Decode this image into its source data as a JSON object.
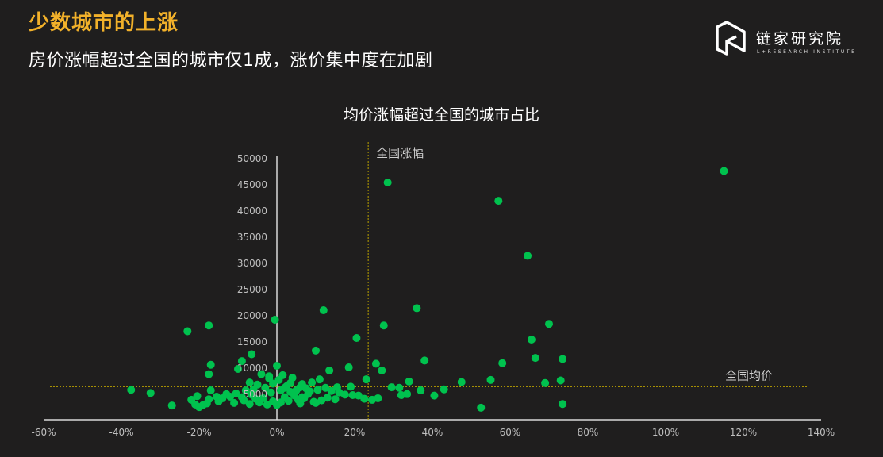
{
  "headline": "少数城市的上涨",
  "subheadline": "房价涨幅超过全国的城市仅1成，涨价集中度在加剧",
  "brand": {
    "name": "链家研究院",
    "tagline": "L+RESEARCH INSTITUTE"
  },
  "colors": {
    "accent": "#f2b12a",
    "points": "#00c24e",
    "reference_line": "#b9a000",
    "axis": "#d9d9d9"
  },
  "chart_data": {
    "type": "scatter",
    "title": "均价涨幅超过全国的城市占比",
    "xlabel": "",
    "ylabel": "",
    "xlim": [
      -60,
      140
    ],
    "ylim": [
      0,
      50000
    ],
    "x_ticks": [
      -60,
      -40,
      -20,
      0,
      20,
      40,
      60,
      80,
      100,
      120,
      140
    ],
    "x_tick_labels": [
      "-60%",
      "-40%",
      "-20%",
      "0%",
      "20%",
      "40%",
      "60%",
      "80%",
      "100%",
      "120%",
      "140%"
    ],
    "y_ticks": [
      5000,
      10000,
      15000,
      20000,
      25000,
      30000,
      35000,
      40000,
      45000,
      50000
    ],
    "y_tick_labels": [
      "5000",
      "10000",
      "15000",
      "20000",
      "25000",
      "30000",
      "35000",
      "40000",
      "45000",
      "50000"
    ],
    "reference_lines": [
      {
        "axis": "x",
        "value": 23.5,
        "label": "全国涨幅"
      },
      {
        "axis": "y",
        "value": 6300,
        "label": "全国均价"
      }
    ],
    "series": [
      {
        "points": [
          [
            115,
            47500
          ],
          [
            57,
            41800
          ],
          [
            28.5,
            45300
          ],
          [
            64.5,
            31300
          ],
          [
            36,
            21300
          ],
          [
            12,
            20900
          ],
          [
            70,
            18300
          ],
          [
            27.5,
            18000
          ],
          [
            -0.5,
            19100
          ],
          [
            -17.5,
            18000
          ],
          [
            -23,
            16900
          ],
          [
            20.5,
            15600
          ],
          [
            65.5,
            15300
          ],
          [
            10,
            13200
          ],
          [
            -6.5,
            12500
          ],
          [
            66.5,
            11800
          ],
          [
            73.5,
            11600
          ],
          [
            38,
            11300
          ],
          [
            58,
            10800
          ],
          [
            -9,
            11200
          ],
          [
            25.5,
            10700
          ],
          [
            18.5,
            10000
          ],
          [
            -17,
            10500
          ],
          [
            27,
            9400
          ],
          [
            -17.5,
            8700
          ],
          [
            13.5,
            9400
          ],
          [
            0,
            10300
          ],
          [
            -10,
            9700
          ],
          [
            -4,
            8700
          ],
          [
            -2,
            7900
          ],
          [
            55,
            7600
          ],
          [
            47.5,
            7200
          ],
          [
            69,
            7000
          ],
          [
            73,
            7500
          ],
          [
            34,
            7300
          ],
          [
            3.5,
            7000
          ],
          [
            6.5,
            6800
          ],
          [
            9,
            7100
          ],
          [
            11,
            7700
          ],
          [
            23,
            7700
          ],
          [
            29.5,
            6200
          ],
          [
            31.5,
            6100
          ],
          [
            37,
            5600
          ],
          [
            33.5,
            4900
          ],
          [
            40.5,
            4600
          ],
          [
            32,
            4700
          ],
          [
            43,
            5800
          ],
          [
            19,
            6300
          ],
          [
            15.5,
            6200
          ],
          [
            -37.5,
            5700
          ],
          [
            -32.5,
            5100
          ],
          [
            -22,
            3800
          ],
          [
            -20.5,
            4500
          ],
          [
            -17,
            5600
          ],
          [
            -17.5,
            3900
          ],
          [
            -14,
            4100
          ],
          [
            -27,
            2700
          ],
          [
            -20,
            2400
          ],
          [
            -21,
            2900
          ],
          [
            -12,
            4400
          ],
          [
            -9,
            4300
          ],
          [
            -8,
            5600
          ],
          [
            -6,
            5800
          ],
          [
            -5,
            6700
          ],
          [
            -3,
            6100
          ],
          [
            -1.5,
            5200
          ],
          [
            0.5,
            7600
          ],
          [
            1.5,
            8500
          ],
          [
            2.5,
            6400
          ],
          [
            4,
            8000
          ],
          [
            5,
            5600
          ],
          [
            6,
            6200
          ],
          [
            7.5,
            6000
          ],
          [
            8.5,
            5400
          ],
          [
            10.5,
            5700
          ],
          [
            12.5,
            6100
          ],
          [
            14,
            5500
          ],
          [
            16,
            5200
          ],
          [
            17.5,
            4800
          ],
          [
            19.5,
            4700
          ],
          [
            21,
            4600
          ],
          [
            22.5,
            4000
          ],
          [
            24.5,
            3800
          ],
          [
            26,
            4100
          ],
          [
            -1,
            3500
          ],
          [
            1,
            3300
          ],
          [
            3,
            3600
          ],
          [
            5.5,
            3800
          ],
          [
            7,
            4100
          ],
          [
            9.5,
            3400
          ],
          [
            11.5,
            3700
          ],
          [
            13,
            4200
          ],
          [
            15,
            3900
          ],
          [
            -15,
            3500
          ],
          [
            -11,
            3200
          ],
          [
            -7,
            3000
          ],
          [
            -4.5,
            3300
          ],
          [
            -2.5,
            2900
          ],
          [
            0,
            2800
          ],
          [
            2,
            4300
          ],
          [
            4.5,
            4600
          ],
          [
            6.5,
            4300
          ],
          [
            8,
            4900
          ],
          [
            -13,
            4900
          ],
          [
            -10.5,
            5000
          ],
          [
            -6.5,
            4800
          ],
          [
            -3.5,
            4100
          ],
          [
            -8.5,
            3700
          ],
          [
            -5.5,
            4000
          ],
          [
            1,
            5600
          ],
          [
            3.5,
            5300
          ],
          [
            -1,
            6900
          ],
          [
            -2,
            8300
          ],
          [
            -7,
            7100
          ],
          [
            2,
            6100
          ],
          [
            6,
            3100
          ],
          [
            10,
            3200
          ],
          [
            -18,
            3100
          ],
          [
            -19,
            2800
          ],
          [
            -15.5,
            4400
          ],
          [
            52.5,
            2300
          ],
          [
            73.5,
            3000
          ]
        ]
      }
    ]
  }
}
